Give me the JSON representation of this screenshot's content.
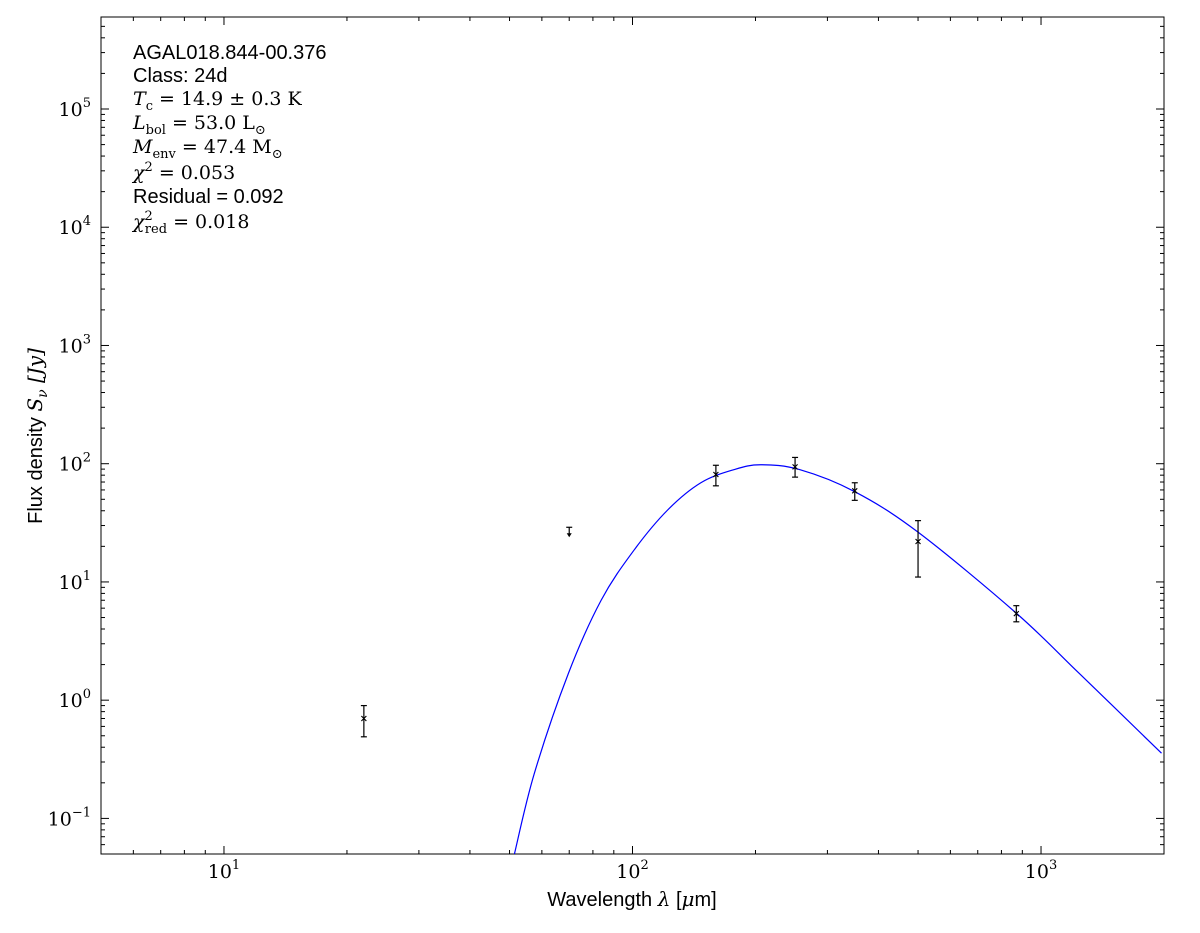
{
  "chart_data": {
    "type": "scatter",
    "title": "",
    "xlabel": "Wavelength λ [μm]",
    "xlabel_parts": {
      "pre": "Wavelength ",
      "sym": "λ",
      "post": " [",
      "mu": "μ",
      "unit": "m]"
    },
    "ylabel": "Flux density S_ν [Jy]",
    "ylabel_parts": {
      "pre": "Flux density ",
      "sym": "S",
      "sub": "ν",
      "unit": " [Jy]"
    },
    "xscale": "log",
    "yscale": "log",
    "xlim": [
      5,
      2000
    ],
    "ylim": [
      0.05,
      600000
    ],
    "grid": false,
    "x_ticks": [
      {
        "base": "10",
        "exp": "1",
        "value": 10
      },
      {
        "base": "10",
        "exp": "2",
        "value": 100
      },
      {
        "base": "10",
        "exp": "3",
        "value": 1000
      }
    ],
    "y_ticks": [
      {
        "base": "10",
        "exp": "−1",
        "value": 0.1
      },
      {
        "base": "10",
        "exp": "0",
        "value": 1
      },
      {
        "base": "10",
        "exp": "1",
        "value": 10
      },
      {
        "base": "10",
        "exp": "2",
        "value": 100
      },
      {
        "base": "10",
        "exp": "3",
        "value": 1000
      },
      {
        "base": "10",
        "exp": "4",
        "value": 10000
      },
      {
        "base": "10",
        "exp": "5",
        "value": 100000
      }
    ],
    "points": [
      {
        "x": 22,
        "y": 0.7,
        "err_low": 0.21,
        "err_high": 0.2
      },
      {
        "x": 160,
        "y": 81,
        "err_low": 16,
        "err_high": 16
      },
      {
        "x": 250,
        "y": 94,
        "err_low": 17,
        "err_high": 19
      },
      {
        "x": 350,
        "y": 59,
        "err_low": 10,
        "err_high": 10
      },
      {
        "x": 500,
        "y": 22,
        "err_low": 11,
        "err_high": 11
      },
      {
        "x": 870,
        "y": 5.4,
        "err_low": 0.8,
        "err_high": 0.9
      }
    ],
    "upper_limits": [
      {
        "x": 70,
        "y": 29
      }
    ],
    "model_curve": {
      "color": "#0000ff",
      "x": [
        51.4,
        57.5,
        69.7,
        83.8,
        101,
        122,
        147,
        177,
        206,
        257,
        350,
        499,
        869,
        1239,
        1972
      ],
      "y": [
        0.05,
        0.24,
        1.69,
        7.0,
        18.7,
        40.7,
        69,
        89,
        98,
        89,
        58,
        26.5,
        5.46,
        1.69,
        0.356
      ]
    },
    "annotations": [
      {
        "type": "plain",
        "text": "AGAL018.844-00.376"
      },
      {
        "type": "plain",
        "text": "Class: 24d"
      },
      {
        "type": "math",
        "sym": "T",
        "sub": "c",
        "sup": "",
        "rest": " = 14.9 ± 0.3 K",
        "unit_sub": ""
      },
      {
        "type": "math",
        "sym": "L",
        "sub": "bol",
        "sup": "",
        "rest": " = 53.0 L",
        "unit_sub": "⊙"
      },
      {
        "type": "math",
        "sym": "M",
        "sub": "env",
        "sup": "",
        "rest": " = 47.4 M",
        "unit_sub": "⊙"
      },
      {
        "type": "math",
        "sym": "χ",
        "sub": "",
        "sup": "2",
        "rest": " = 0.053",
        "unit_sub": ""
      },
      {
        "type": "plain",
        "text": "Residual = 0.092"
      },
      {
        "type": "math",
        "sym": "χ",
        "sub": "red",
        "sup": "2",
        "rest": " = 0.018",
        "unit_sub": ""
      }
    ]
  }
}
